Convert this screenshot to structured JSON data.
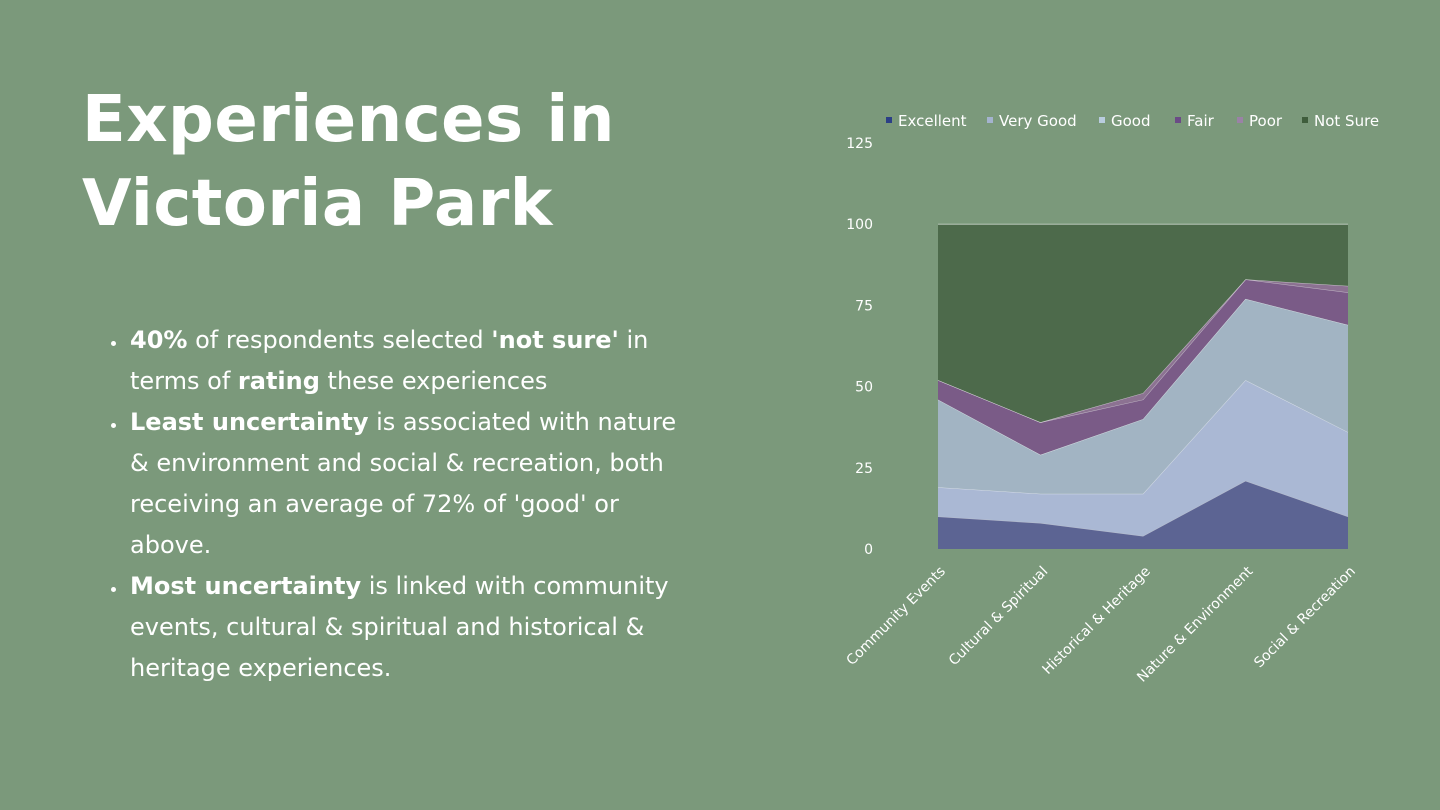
{
  "slide": {
    "title_lines": [
      "Experiences in",
      "Victoria Park"
    ],
    "bullets": [
      {
        "parts": [
          {
            "text": "40%",
            "bold": true
          },
          {
            "text": " of respondents selected ",
            "bold": false
          },
          {
            "text": "'not sure'",
            "bold": true
          },
          {
            "text": " in terms of ",
            "bold": false
          },
          {
            "text": "rating",
            "bold": true
          },
          {
            "text": " these experiences",
            "bold": false
          }
        ]
      },
      {
        "parts": [
          {
            "text": "Least uncertainty",
            "bold": true
          },
          {
            "text": " is associated with nature & environment and social & recreation, both receiving an average of 72% of 'good' or above.",
            "bold": false
          }
        ]
      },
      {
        "parts": [
          {
            "text": "Most uncertainty",
            "bold": true
          },
          {
            "text": " is linked with community events, cultural & spiritual and historical & heritage experiences.",
            "bold": false
          }
        ]
      }
    ]
  },
  "chart_data": {
    "type": "area",
    "stacked": true,
    "categories": [
      "Community Events",
      "Cultural & Spiritual",
      "Historical & Heritage",
      "Nature & Environment",
      "Social & Recreation"
    ],
    "series": [
      {
        "name": "Excellent",
        "values": [
          10,
          8,
          4,
          21,
          10
        ],
        "color": "#5c6493"
      },
      {
        "name": "Very Good",
        "values": [
          9,
          9,
          13,
          31,
          26
        ],
        "color": "#aab8d4"
      },
      {
        "name": "Good",
        "values": [
          27,
          12,
          23,
          25,
          33
        ],
        "color": "#a2b4c3"
      },
      {
        "name": "Fair",
        "values": [
          6,
          10,
          6,
          6,
          10
        ],
        "color": "#7a5b87"
      },
      {
        "name": "Poor",
        "values": [
          0,
          0,
          2,
          0,
          2
        ],
        "color": "#8c7292"
      },
      {
        "name": "Not Sure",
        "values": [
          48,
          61,
          52,
          17,
          19
        ],
        "color": "#4d6a4b"
      }
    ],
    "legend_marker_colors": [
      "#2b3f86",
      "#a4b3cf",
      "#b9ccdf",
      "#6b4b86",
      "#9a82a6",
      "#3f5d3c"
    ],
    "y_ticks": [
      0,
      25,
      50,
      75,
      100,
      125
    ],
    "ylim": [
      0,
      125
    ],
    "grid": false,
    "legend": "top"
  }
}
